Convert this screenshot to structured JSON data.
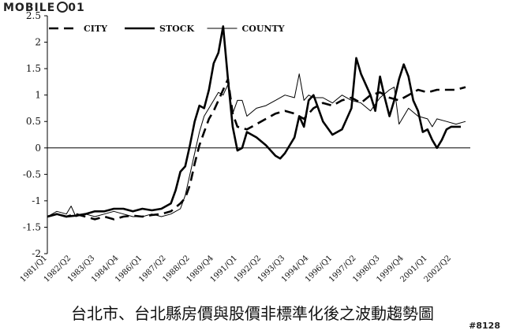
{
  "watermark": {
    "logo_text": "MOBILE",
    "logo_suffix": "01",
    "post_id": "#8128"
  },
  "caption": "台北市、台北縣房價與股價非標準化後之波動趨勢圖",
  "chart_data": {
    "type": "line",
    "title": "",
    "xlabel": "",
    "ylabel": "",
    "ylim": [
      -2,
      2.5
    ],
    "yticks": [
      2.5,
      2,
      1.5,
      1,
      0.5,
      0,
      -0.5,
      -1,
      -1.5,
      -2
    ],
    "ytick_labels": [
      "2.5",
      "2",
      "1.5",
      "1",
      "0.5",
      "0",
      "-0.5",
      "-1",
      "-1.5",
      "-2"
    ],
    "x_range": [
      1981.0,
      2003.25
    ],
    "x_ticks": [
      1981.0,
      1982.25,
      1983.5,
      1984.75,
      1986.0,
      1987.25,
      1988.5,
      1989.75,
      1991.0,
      1992.25,
      1993.5,
      1994.75,
      1996.0,
      1997.25,
      1998.5,
      1999.75,
      2001.0,
      2002.25
    ],
    "x_tick_labels": [
      "1981/Q1",
      "1982/Q2",
      "1983/Q3",
      "1984/Q4",
      "1986/Q1",
      "1987/Q2",
      "1988/Q2",
      "1989/Q4",
      "1991/Q1",
      "1992/Q2",
      "1993/Q3",
      "1994/Q4",
      "1996/Q1",
      "1997/Q2",
      "1998/Q3",
      "1999/Q4",
      "2001/Q1",
      "2002/Q2"
    ],
    "legend_position": "top-left",
    "grid": false,
    "series": [
      {
        "name": "CITY",
        "style": "dashed",
        "x": [
          1981.0,
          1981.5,
          1982.0,
          1982.5,
          1983.0,
          1983.5,
          1984.0,
          1984.5,
          1985.0,
          1985.5,
          1986.0,
          1986.5,
          1987.0,
          1987.5,
          1988.0,
          1988.25,
          1988.5,
          1988.75,
          1989.0,
          1989.25,
          1989.5,
          1989.75,
          1990.0,
          1990.25,
          1990.5,
          1990.75,
          1991.0,
          1991.5,
          1992.0,
          1992.5,
          1993.0,
          1993.5,
          1994.0,
          1994.5,
          1995.0,
          1995.5,
          1996.0,
          1996.5,
          1997.0,
          1997.5,
          1998.0,
          1998.5,
          1999.0,
          1999.5,
          2000.0,
          2000.5,
          2001.0,
          2001.5,
          2002.0,
          2002.5,
          2003.0
        ],
        "values": [
          -1.3,
          -1.25,
          -1.3,
          -1.25,
          -1.3,
          -1.35,
          -1.3,
          -1.35,
          -1.3,
          -1.28,
          -1.3,
          -1.27,
          -1.25,
          -1.2,
          -1.05,
          -0.95,
          -0.7,
          -0.3,
          0.05,
          0.3,
          0.55,
          0.7,
          0.9,
          1.1,
          1.3,
          0.65,
          0.4,
          0.35,
          0.45,
          0.55,
          0.65,
          0.7,
          0.65,
          0.55,
          0.75,
          0.85,
          0.8,
          0.9,
          0.95,
          0.85,
          1.0,
          1.05,
          0.95,
          0.9,
          1.0,
          1.1,
          1.05,
          1.1,
          1.1,
          1.1,
          1.15
        ]
      },
      {
        "name": "STOCK",
        "style": "solid-thick",
        "x": [
          1981.0,
          1981.5,
          1982.0,
          1982.5,
          1983.0,
          1983.5,
          1984.0,
          1984.5,
          1985.0,
          1985.5,
          1986.0,
          1986.5,
          1987.0,
          1987.5,
          1987.75,
          1988.0,
          1988.25,
          1988.5,
          1988.75,
          1989.0,
          1989.25,
          1989.5,
          1989.75,
          1990.0,
          1990.25,
          1990.5,
          1990.75,
          1991.0,
          1991.25,
          1991.5,
          1992.0,
          1992.5,
          1993.0,
          1993.25,
          1993.5,
          1994.0,
          1994.25,
          1994.5,
          1994.75,
          1995.0,
          1995.5,
          1996.0,
          1996.5,
          1996.75,
          1997.0,
          1997.25,
          1997.5,
          1998.0,
          1998.25,
          1998.5,
          1998.75,
          1999.0,
          1999.25,
          1999.5,
          1999.75,
          2000.0,
          2000.25,
          2000.5,
          2000.75,
          2001.0,
          2001.25,
          2001.5,
          2001.75,
          2002.0,
          2002.25,
          2002.5,
          2002.75
        ],
        "values": [
          -1.3,
          -1.25,
          -1.3,
          -1.28,
          -1.25,
          -1.2,
          -1.2,
          -1.15,
          -1.15,
          -1.2,
          -1.15,
          -1.18,
          -1.15,
          -1.05,
          -0.8,
          -0.45,
          -0.35,
          0.05,
          0.5,
          0.8,
          0.75,
          1.1,
          1.6,
          1.8,
          2.3,
          1.3,
          0.4,
          -0.05,
          0.0,
          0.3,
          0.2,
          0.05,
          -0.15,
          -0.2,
          -0.1,
          0.2,
          0.6,
          0.4,
          0.9,
          1.0,
          0.5,
          0.25,
          0.35,
          0.55,
          0.75,
          1.7,
          1.4,
          1.0,
          0.7,
          1.35,
          0.95,
          0.6,
          0.9,
          1.3,
          1.58,
          1.35,
          0.9,
          0.7,
          0.3,
          0.35,
          0.15,
          0.0,
          0.15,
          0.35,
          0.4,
          0.4,
          0.4
        ]
      },
      {
        "name": "COUNTY",
        "style": "solid-thin",
        "x": [
          1981.0,
          1981.5,
          1982.0,
          1982.25,
          1982.5,
          1983.0,
          1983.5,
          1984.0,
          1984.5,
          1985.0,
          1985.5,
          1986.0,
          1986.5,
          1987.0,
          1987.5,
          1988.0,
          1988.25,
          1988.5,
          1988.75,
          1989.0,
          1989.25,
          1989.5,
          1989.75,
          1990.0,
          1990.25,
          1990.5,
          1990.75,
          1991.0,
          1991.25,
          1991.5,
          1992.0,
          1992.5,
          1993.0,
          1993.5,
          1994.0,
          1994.25,
          1994.5,
          1994.75,
          1995.0,
          1995.5,
          1996.0,
          1996.5,
          1997.0,
          1997.5,
          1998.0,
          1998.5,
          1999.0,
          1999.25,
          1999.5,
          1999.75,
          2000.0,
          2000.5,
          2001.0,
          2001.25,
          2001.5,
          2002.0,
          2002.5,
          2003.0
        ],
        "values": [
          -1.3,
          -1.2,
          -1.25,
          -1.1,
          -1.3,
          -1.25,
          -1.3,
          -1.25,
          -1.2,
          -1.25,
          -1.3,
          -1.3,
          -1.25,
          -1.3,
          -1.25,
          -1.15,
          -0.9,
          -0.5,
          -0.1,
          0.3,
          0.6,
          0.75,
          0.9,
          1.05,
          1.0,
          1.2,
          0.65,
          0.9,
          0.9,
          0.6,
          0.75,
          0.8,
          0.9,
          1.0,
          0.95,
          1.4,
          0.9,
          1.0,
          0.95,
          0.95,
          0.85,
          1.0,
          0.9,
          0.85,
          0.7,
          0.95,
          1.1,
          1.15,
          0.45,
          0.6,
          0.75,
          0.6,
          0.55,
          0.4,
          0.55,
          0.5,
          0.45,
          0.5
        ]
      }
    ]
  }
}
